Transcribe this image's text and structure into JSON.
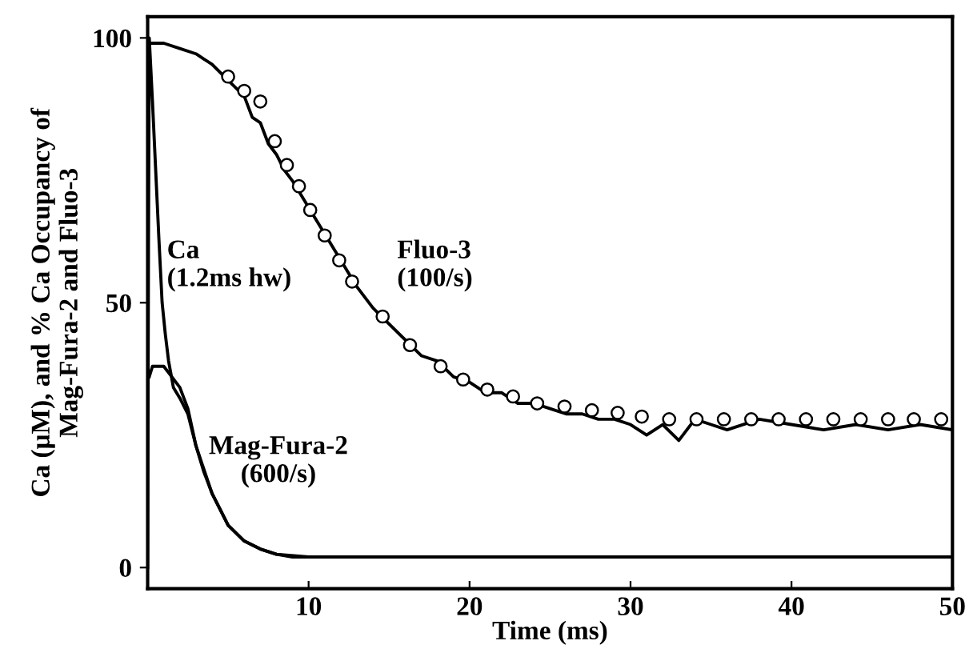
{
  "chart_data": {
    "type": "line",
    "xlabel": "Time (ms)",
    "ylabel": "Ca (μM), and % Ca Occupancy of\nMag-Fura-2 and Fluo-3",
    "xlim": [
      0,
      50
    ],
    "ylim": [
      -4,
      104
    ],
    "xticks": [
      10,
      20,
      30,
      40,
      50
    ],
    "yticks": [
      0,
      50,
      100
    ],
    "grid": false,
    "legend": false,
    "series": [
      {
        "type": "scatter",
        "marker": "circle",
        "color": "#000000",
        "x": [
          5,
          6,
          7,
          7.9,
          8.65,
          9.4,
          10.1,
          11,
          11.9,
          12.7,
          14.6,
          16.3,
          18.2,
          19.6,
          21.1,
          22.7,
          24.2,
          25.9,
          27.6,
          29.2,
          30.7,
          32.4,
          34.1,
          35.8,
          37.5,
          39.2,
          40.9,
          42.6,
          44.3,
          46,
          47.6,
          49.3
        ],
        "values": [
          92.7,
          90,
          88,
          80.5,
          76,
          72,
          67.5,
          62.7,
          58,
          54,
          47.4,
          42,
          38,
          35.5,
          33.6,
          32.3,
          31,
          30.4,
          29.7,
          29.2,
          28.5,
          28,
          28,
          28,
          28,
          28,
          28,
          28,
          28,
          28,
          28,
          28
        ]
      },
      {
        "name": "Fluo-3\n(100/s)",
        "color": "#000000",
        "x": [
          0,
          1,
          2,
          3,
          4,
          5,
          6,
          6.5,
          7,
          7.5,
          8,
          8.5,
          9,
          10,
          11,
          12,
          13,
          14,
          15,
          16,
          17,
          18,
          19,
          20,
          21,
          22,
          23,
          24,
          25,
          26,
          27,
          28,
          29,
          30,
          31,
          32,
          33,
          34,
          35,
          36,
          38,
          40,
          42,
          44,
          46,
          48,
          50
        ],
        "values": [
          99,
          99,
          98,
          97,
          95,
          92,
          89,
          85,
          84,
          80,
          78,
          75,
          73,
          68,
          63,
          58,
          53,
          49,
          46,
          43,
          40,
          39,
          36,
          35,
          33,
          33,
          31,
          31,
          30,
          29,
          29,
          28,
          28,
          27,
          25,
          27,
          24,
          28,
          27,
          26,
          28,
          27,
          26,
          27,
          26,
          27,
          26
        ]
      },
      {
        "name": "Ca\n(1.2ms hw)",
        "color": "#000000",
        "x": [
          0,
          0.05,
          0.1,
          0.3,
          0.5,
          0.7,
          0.9,
          1.1,
          1.3,
          1.6,
          2.0,
          2.5,
          3,
          4,
          5,
          6,
          7,
          8,
          10,
          50
        ],
        "values": [
          0,
          60,
          100,
          88,
          75,
          62,
          50,
          44,
          39,
          34,
          32,
          29,
          23,
          14,
          8,
          5,
          3.5,
          2.5,
          2,
          2
        ]
      },
      {
        "name": "Mag-Fura-2\n(600/s)",
        "color": "#000000",
        "x": [
          0.1,
          0.3,
          1,
          1.5,
          2,
          2.5,
          3,
          3.5,
          4,
          4.5,
          5,
          6,
          7,
          8,
          9,
          10,
          12,
          15,
          20,
          25,
          30,
          35,
          40,
          45,
          50
        ],
        "values": [
          36,
          38,
          38,
          36,
          34,
          30,
          23,
          18,
          14,
          11,
          8,
          5,
          3.5,
          2.5,
          2,
          2,
          2,
          2,
          2,
          2,
          2,
          2,
          2,
          2,
          2
        ]
      }
    ]
  }
}
